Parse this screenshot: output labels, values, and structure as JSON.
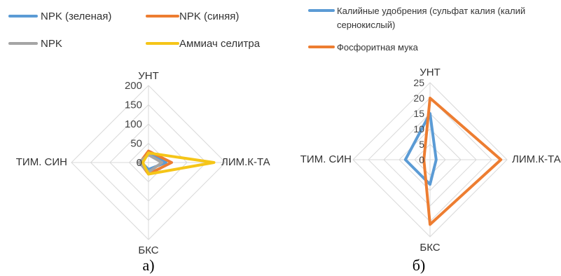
{
  "chart_data": [
    {
      "type": "radar",
      "caption": "а)",
      "axes": [
        "УНТ",
        "ЛИМ.К-ТА",
        "БКС",
        "ТИМ. СИН"
      ],
      "ticks": [
        0,
        50,
        100,
        150,
        200
      ],
      "ylim": [
        0,
        200
      ],
      "legend_placement": "top",
      "series": [
        {
          "name": "NPK (зеленая)",
          "color": "#5b9bd5",
          "values": [
            25,
            45,
            18,
            18
          ]
        },
        {
          "name": "NPK (синяя)",
          "color": "#ed7d31",
          "values": [
            30,
            60,
            30,
            22
          ]
        },
        {
          "name": "NPK",
          "color": "#a5a5a5",
          "values": [
            20,
            35,
            25,
            25
          ]
        },
        {
          "name": "Аммиач селитра",
          "color": "#f5c518",
          "values": [
            25,
            170,
            30,
            15
          ]
        }
      ]
    },
    {
      "type": "radar",
      "caption": "б)",
      "axes": [
        "УНТ",
        "ЛИМ.К-ТА",
        "БКС",
        "ТИМ. СИН"
      ],
      "ticks": [
        0,
        5,
        10,
        15,
        20,
        25
      ],
      "ylim": [
        0,
        25
      ],
      "legend_placement": "top",
      "series": [
        {
          "name": "Калийные удобрения (сульфат калия (калий сернокислый)",
          "color": "#5b9bd5",
          "values": [
            15,
            2,
            8,
            8
          ]
        },
        {
          "name": "Фосфоритная мука",
          "color": "#ed7d31",
          "values": [
            20,
            23,
            21,
            2
          ]
        }
      ]
    }
  ]
}
